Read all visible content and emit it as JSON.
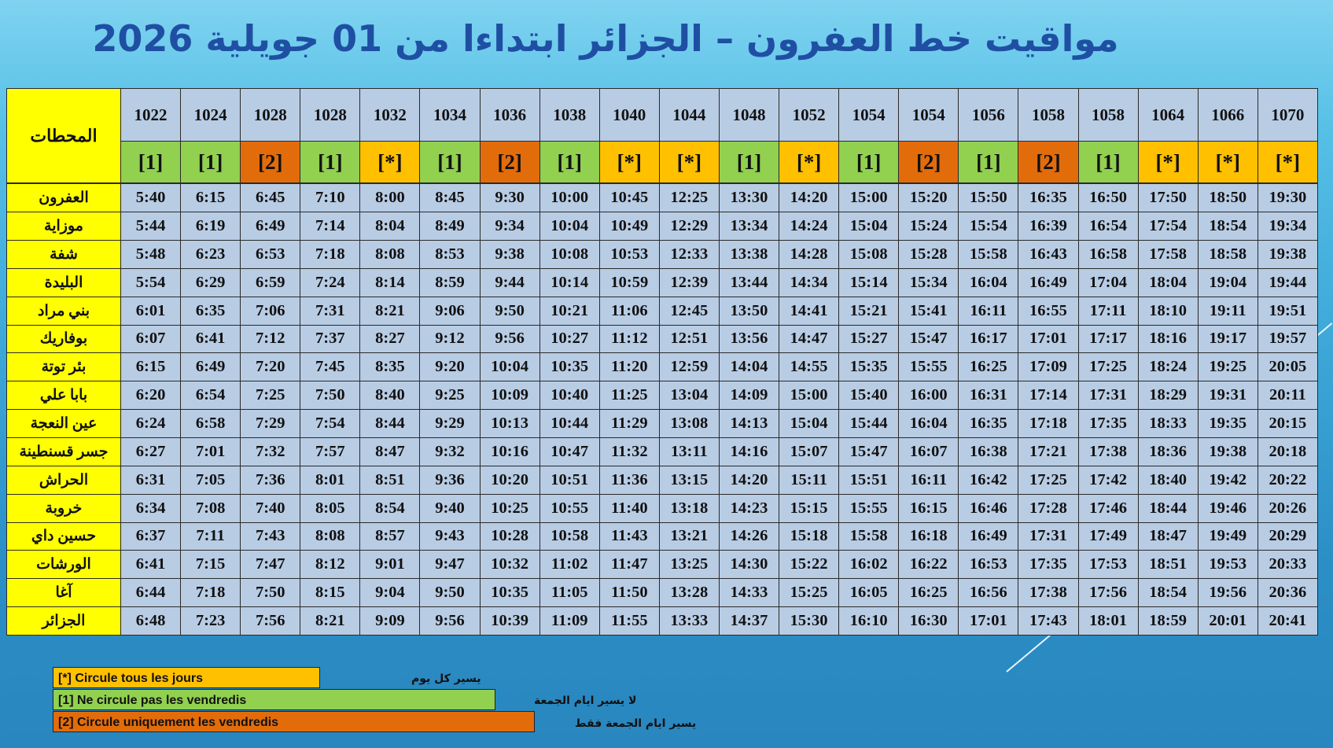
{
  "title": "مواقيت خط العفرون  – الجزائر ابتداءا من 01 جويلية 2026",
  "stations_header": "المحطات",
  "trains": [
    {
      "number": "1022",
      "type": "[1]",
      "color": "#92d050"
    },
    {
      "number": "1024",
      "type": "[1]",
      "color": "#92d050"
    },
    {
      "number": "1028",
      "type": "[2]",
      "color": "#e36c0a"
    },
    {
      "number": "1028",
      "type": "[1]",
      "color": "#92d050"
    },
    {
      "number": "1032",
      "type": "[*]",
      "color": "#ffc000"
    },
    {
      "number": "1034",
      "type": "[1]",
      "color": "#92d050"
    },
    {
      "number": "1036",
      "type": "[2]",
      "color": "#e36c0a"
    },
    {
      "number": "1038",
      "type": "[1]",
      "color": "#92d050"
    },
    {
      "number": "1040",
      "type": "[*]",
      "color": "#ffc000"
    },
    {
      "number": "1044",
      "type": "[*]",
      "color": "#ffc000"
    },
    {
      "number": "1048",
      "type": "[1]",
      "color": "#92d050"
    },
    {
      "number": "1052",
      "type": "[*]",
      "color": "#ffc000"
    },
    {
      "number": "1054",
      "type": "[1]",
      "color": "#92d050"
    },
    {
      "number": "1054",
      "type": "[2]",
      "color": "#e36c0a"
    },
    {
      "number": "1056",
      "type": "[1]",
      "color": "#92d050"
    },
    {
      "number": "1058",
      "type": "[2]",
      "color": "#e36c0a"
    },
    {
      "number": "1058",
      "type": "[1]",
      "color": "#92d050"
    },
    {
      "number": "1064",
      "type": "[*]",
      "color": "#ffc000"
    },
    {
      "number": "1066",
      "type": "[*]",
      "color": "#ffc000"
    },
    {
      "number": "1070",
      "type": "[*]",
      "color": "#ffc000"
    }
  ],
  "stations": [
    {
      "name": "العفرون",
      "times": [
        "5:40",
        "6:15",
        "6:45",
        "7:10",
        "8:00",
        "8:45",
        "9:30",
        "10:00",
        "10:45",
        "12:25",
        "13:30",
        "14:20",
        "15:00",
        "15:20",
        "15:50",
        "16:35",
        "16:50",
        "17:50",
        "18:50",
        "19:30"
      ]
    },
    {
      "name": "موزاية",
      "times": [
        "5:44",
        "6:19",
        "6:49",
        "7:14",
        "8:04",
        "8:49",
        "9:34",
        "10:04",
        "10:49",
        "12:29",
        "13:34",
        "14:24",
        "15:04",
        "15:24",
        "15:54",
        "16:39",
        "16:54",
        "17:54",
        "18:54",
        "19:34"
      ]
    },
    {
      "name": "شفة",
      "times": [
        "5:48",
        "6:23",
        "6:53",
        "7:18",
        "8:08",
        "8:53",
        "9:38",
        "10:08",
        "10:53",
        "12:33",
        "13:38",
        "14:28",
        "15:08",
        "15:28",
        "15:58",
        "16:43",
        "16:58",
        "17:58",
        "18:58",
        "19:38"
      ]
    },
    {
      "name": "البليدة",
      "times": [
        "5:54",
        "6:29",
        "6:59",
        "7:24",
        "8:14",
        "8:59",
        "9:44",
        "10:14",
        "10:59",
        "12:39",
        "13:44",
        "14:34",
        "15:14",
        "15:34",
        "16:04",
        "16:49",
        "17:04",
        "18:04",
        "19:04",
        "19:44"
      ]
    },
    {
      "name": "بني مراد",
      "times": [
        "6:01",
        "6:35",
        "7:06",
        "7:31",
        "8:21",
        "9:06",
        "9:50",
        "10:21",
        "11:06",
        "12:45",
        "13:50",
        "14:41",
        "15:21",
        "15:41",
        "16:11",
        "16:55",
        "17:11",
        "18:10",
        "19:11",
        "19:51"
      ]
    },
    {
      "name": "بوفاريك",
      "times": [
        "6:07",
        "6:41",
        "7:12",
        "7:37",
        "8:27",
        "9:12",
        "9:56",
        "10:27",
        "11:12",
        "12:51",
        "13:56",
        "14:47",
        "15:27",
        "15:47",
        "16:17",
        "17:01",
        "17:17",
        "18:16",
        "19:17",
        "19:57"
      ]
    },
    {
      "name": "بئر توتة",
      "times": [
        "6:15",
        "6:49",
        "7:20",
        "7:45",
        "8:35",
        "9:20",
        "10:04",
        "10:35",
        "11:20",
        "12:59",
        "14:04",
        "14:55",
        "15:35",
        "15:55",
        "16:25",
        "17:09",
        "17:25",
        "18:24",
        "19:25",
        "20:05"
      ]
    },
    {
      "name": "بابا علي",
      "times": [
        "6:20",
        "6:54",
        "7:25",
        "7:50",
        "8:40",
        "9:25",
        "10:09",
        "10:40",
        "11:25",
        "13:04",
        "14:09",
        "15:00",
        "15:40",
        "16:00",
        "16:31",
        "17:14",
        "17:31",
        "18:29",
        "19:31",
        "20:11"
      ]
    },
    {
      "name": "عين النعجة",
      "times": [
        "6:24",
        "6:58",
        "7:29",
        "7:54",
        "8:44",
        "9:29",
        "10:13",
        "10:44",
        "11:29",
        "13:08",
        "14:13",
        "15:04",
        "15:44",
        "16:04",
        "16:35",
        "17:18",
        "17:35",
        "18:33",
        "19:35",
        "20:15"
      ]
    },
    {
      "name": "جسر قسنطينة",
      "times": [
        "6:27",
        "7:01",
        "7:32",
        "7:57",
        "8:47",
        "9:32",
        "10:16",
        "10:47",
        "11:32",
        "13:11",
        "14:16",
        "15:07",
        "15:47",
        "16:07",
        "16:38",
        "17:21",
        "17:38",
        "18:36",
        "19:38",
        "20:18"
      ]
    },
    {
      "name": "الحراش",
      "times": [
        "6:31",
        "7:05",
        "7:36",
        "8:01",
        "8:51",
        "9:36",
        "10:20",
        "10:51",
        "11:36",
        "13:15",
        "14:20",
        "15:11",
        "15:51",
        "16:11",
        "16:42",
        "17:25",
        "17:42",
        "18:40",
        "19:42",
        "20:22"
      ]
    },
    {
      "name": "خروبة",
      "times": [
        "6:34",
        "7:08",
        "7:40",
        "8:05",
        "8:54",
        "9:40",
        "10:25",
        "10:55",
        "11:40",
        "13:18",
        "14:23",
        "15:15",
        "15:55",
        "16:15",
        "16:46",
        "17:28",
        "17:46",
        "18:44",
        "19:46",
        "20:26"
      ]
    },
    {
      "name": "حسين داي",
      "times": [
        "6:37",
        "7:11",
        "7:43",
        "8:08",
        "8:57",
        "9:43",
        "10:28",
        "10:58",
        "11:43",
        "13:21",
        "14:26",
        "15:18",
        "15:58",
        "16:18",
        "16:49",
        "17:31",
        "17:49",
        "18:47",
        "19:49",
        "20:29"
      ]
    },
    {
      "name": "الورشات",
      "times": [
        "6:41",
        "7:15",
        "7:47",
        "8:12",
        "9:01",
        "9:47",
        "10:32",
        "11:02",
        "11:47",
        "13:25",
        "14:30",
        "15:22",
        "16:02",
        "16:22",
        "16:53",
        "17:35",
        "17:53",
        "18:51",
        "19:53",
        "20:33"
      ]
    },
    {
      "name": "آغا",
      "times": [
        "6:44",
        "7:18",
        "7:50",
        "8:15",
        "9:04",
        "9:50",
        "10:35",
        "11:05",
        "11:50",
        "13:28",
        "14:33",
        "15:25",
        "16:05",
        "16:25",
        "16:56",
        "17:38",
        "17:56",
        "18:54",
        "19:56",
        "20:36"
      ]
    },
    {
      "name": "الجزائر",
      "times": [
        "6:48",
        "7:23",
        "7:56",
        "8:21",
        "9:09",
        "9:56",
        "10:39",
        "11:09",
        "11:55",
        "13:33",
        "14:37",
        "15:30",
        "16:10",
        "16:30",
        "17:01",
        "17:43",
        "18:01",
        "18:59",
        "20:01",
        "20:41"
      ]
    }
  ],
  "legend": [
    {
      "label": "[*]  Circule tous les jours",
      "arabic": "يسير كل يوم",
      "color": "#ffc000"
    },
    {
      "label": "[1]  Ne circule pas les vendredis",
      "arabic": "لا يسير ايام الجمعة",
      "color": "#92d050"
    },
    {
      "label": "[2] Circule uniquement  les vendredis",
      "arabic": "يسير ايام الجمعة  فقط",
      "color": "#e36c0a"
    }
  ]
}
